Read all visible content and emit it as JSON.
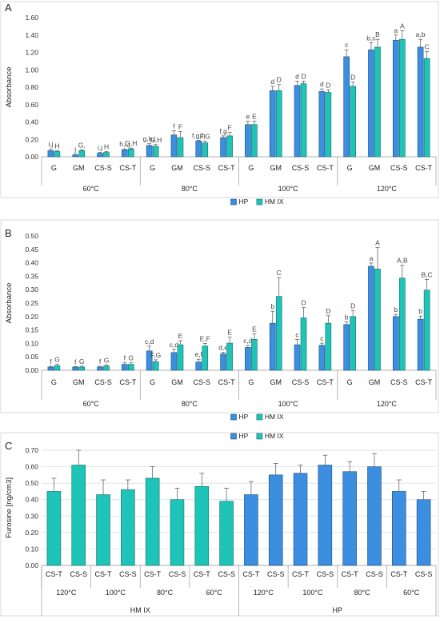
{
  "chart_data": [
    {
      "panel": "A",
      "type": "bar",
      "ylabel": "Absorbance",
      "ylim": [
        0,
        1.6
      ],
      "yticks": [
        "0.00",
        "0.20",
        "0.40",
        "0.60",
        "0.80",
        "1.00",
        "1.20",
        "1.40",
        "1.60"
      ],
      "grid": false,
      "legend_placement": "bottom-center",
      "groups": [
        {
          "label": "60°C",
          "categories": [
            "G",
            "GM",
            "CS-S",
            "CS-T"
          ]
        },
        {
          "label": "80°C",
          "categories": [
            "G",
            "GM",
            "CS-S",
            "CS-T"
          ]
        },
        {
          "label": "100°C",
          "categories": [
            "G",
            "GM",
            "CS-S",
            "CS-T"
          ]
        },
        {
          "label": "120°C",
          "categories": [
            "G",
            "GM",
            "CS-S",
            "CS-T"
          ]
        }
      ],
      "series": [
        {
          "name": "HP",
          "color": "#3b8ee0",
          "values": [
            0.07,
            0.02,
            0.04,
            0.08,
            0.13,
            0.25,
            0.18,
            0.22,
            0.37,
            0.76,
            0.82,
            0.75,
            1.15,
            1.23,
            1.34,
            1.26
          ],
          "errors": [
            0.02,
            0.01,
            0.01,
            0.01,
            0.02,
            0.05,
            0.01,
            0.02,
            0.04,
            0.05,
            0.05,
            0.03,
            0.08,
            0.08,
            0.06,
            0.09
          ],
          "letters": [
            "i,j",
            "j",
            "i,j",
            "h,i,j",
            "g,h,i",
            "f",
            "f,g,h",
            "f,g",
            "e",
            "d",
            "d",
            "d",
            "c",
            "b,c",
            "a",
            "a,b"
          ]
        },
        {
          "name": "HM IX",
          "color": "#1fc4b8",
          "values": [
            0.06,
            0.07,
            0.05,
            0.09,
            0.12,
            0.22,
            0.16,
            0.24,
            0.37,
            0.76,
            0.84,
            0.74,
            0.81,
            1.26,
            1.35,
            1.13
          ],
          "errors": [
            0.01,
            0.01,
            0.01,
            0.01,
            0.02,
            0.07,
            0.02,
            0.04,
            0.04,
            0.07,
            0.03,
            0.03,
            0.05,
            0.09,
            0.1,
            0.08
          ],
          "letters": [
            "H",
            "G,",
            "H",
            "G,H",
            "G,H",
            "F",
            "F,G",
            "F",
            "E",
            "D",
            "D",
            "D",
            "D",
            "B",
            "A",
            "C"
          ]
        }
      ]
    },
    {
      "panel": "B",
      "type": "bar",
      "ylabel": "Absorbance",
      "ylim": [
        0,
        0.5
      ],
      "yticks": [
        "0.00",
        "0.05",
        "0.10",
        "0.15",
        "0.20",
        "0.25",
        "0.30",
        "0.35",
        "0.40",
        "0.45",
        "0.50"
      ],
      "grid": false,
      "legend_placement": "bottom-center",
      "groups": [
        {
          "label": "60°C",
          "categories": [
            "G",
            "GM",
            "CS-S",
            "CS-T"
          ]
        },
        {
          "label": "80°C",
          "categories": [
            "G",
            "GM",
            "CS-S",
            "CS-T"
          ]
        },
        {
          "label": "100°C",
          "categories": [
            "G",
            "GM",
            "CS-S",
            "CS-T"
          ]
        },
        {
          "label": "120°C",
          "categories": [
            "G",
            "GM",
            "CS-S",
            "CS-T"
          ]
        }
      ],
      "series": [
        {
          "name": "HP",
          "color": "#3b8ee0",
          "values": [
            0.012,
            0.012,
            0.012,
            0.022,
            0.072,
            0.066,
            0.031,
            0.061,
            0.085,
            0.175,
            0.095,
            0.093,
            0.17,
            0.387,
            0.2,
            0.19
          ],
          "errors": [
            0.003,
            0.002,
            0.003,
            0.007,
            0.018,
            0.012,
            0.01,
            0.006,
            0.008,
            0.045,
            0.02,
            0.008,
            0.01,
            0.012,
            0.008,
            0.012
          ],
          "letters": [
            "f",
            "f",
            "f",
            "f",
            "c,d",
            "c,d",
            "e,f",
            "d,e",
            "c,d",
            "b",
            "c",
            "c",
            "b",
            "a",
            "b",
            "b"
          ]
        },
        {
          "name": "HM IX",
          "color": "#1fc4b8",
          "values": [
            0.017,
            0.012,
            0.016,
            0.022,
            0.032,
            0.095,
            0.09,
            0.101,
            0.115,
            0.275,
            0.195,
            0.175,
            0.2,
            0.377,
            0.343,
            0.298
          ],
          "errors": [
            0.006,
            0.003,
            0.004,
            0.006,
            0.007,
            0.015,
            0.01,
            0.022,
            0.02,
            0.07,
            0.038,
            0.028,
            0.022,
            0.08,
            0.048,
            0.04
          ],
          "letters": [
            "G",
            "G",
            "G",
            "G",
            "F,G",
            "E",
            "E,F",
            "E",
            "E",
            "C",
            "D",
            "D",
            "D",
            "A",
            "A,B",
            "B,C"
          ]
        }
      ]
    },
    {
      "panel": "C",
      "type": "bar",
      "ylabel": "Furosine [ng/cm3]",
      "ylim": [
        0,
        0.7
      ],
      "yticks": [
        "0.00",
        "0.10",
        "0.20",
        "0.30",
        "0.40",
        "0.50",
        "0.60",
        "0.70"
      ],
      "grid": true,
      "legend_placement": "top-center",
      "series_order": [
        "HP",
        "HM IX"
      ],
      "outer_groups": [
        {
          "label": "HM IX",
          "color": "#1fc4b8",
          "subgroups": [
            {
              "label": "120°C",
              "categories": [
                "CS-T",
                "CS-S"
              ],
              "values": [
                0.45,
                0.61
              ],
              "errors": [
                0.08,
                0.09
              ]
            },
            {
              "label": "100°C",
              "categories": [
                "CS-T",
                "CS-S"
              ],
              "values": [
                0.43,
                0.46
              ],
              "errors": [
                0.09,
                0.06
              ]
            },
            {
              "label": "80°C",
              "categories": [
                "CS-T",
                "CS-S"
              ],
              "values": [
                0.53,
                0.4
              ],
              "errors": [
                0.07,
                0.07
              ]
            },
            {
              "label": "60°C",
              "categories": [
                "CS-T",
                "CS-S"
              ],
              "values": [
                0.48,
                0.39
              ],
              "errors": [
                0.08,
                0.08
              ]
            }
          ]
        },
        {
          "label": "HP",
          "color": "#3b8ee0",
          "subgroups": [
            {
              "label": "120°C",
              "categories": [
                "CS-T",
                "CS-S"
              ],
              "values": [
                0.43,
                0.55
              ],
              "errors": [
                0.08,
                0.07
              ]
            },
            {
              "label": "100°C",
              "categories": [
                "CS-T",
                "CS-S"
              ],
              "values": [
                0.56,
                0.61
              ],
              "errors": [
                0.05,
                0.06
              ]
            },
            {
              "label": "80°C",
              "categories": [
                "CS-T",
                "CS-S"
              ],
              "values": [
                0.57,
                0.6
              ],
              "errors": [
                0.06,
                0.08
              ]
            },
            {
              "label": "60°C",
              "categories": [
                "CS-T",
                "CS-S"
              ],
              "values": [
                0.45,
                0.4
              ],
              "errors": [
                0.07,
                0.05
              ]
            }
          ]
        }
      ]
    }
  ]
}
